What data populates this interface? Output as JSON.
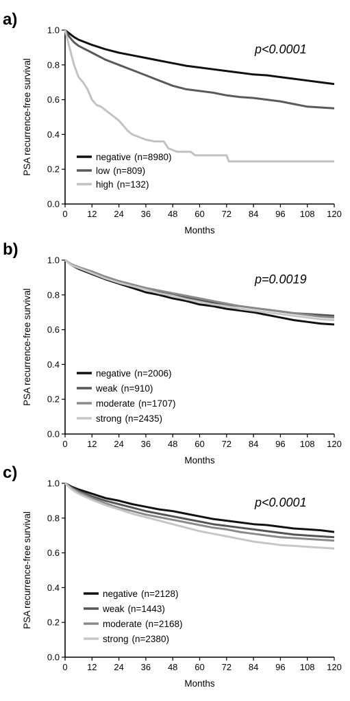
{
  "chart_data": [
    {
      "type": "line",
      "panel_label": "a)",
      "ylabel": "PSA recurrence-free survival",
      "xlabel": "Months",
      "annotation": "p<0.0001",
      "xlim": [
        0,
        120
      ],
      "ylim": [
        0,
        1.0
      ],
      "xticks": [
        "0",
        "12",
        "24",
        "36",
        "48",
        "60",
        "72",
        "84",
        "96",
        "108",
        "120"
      ],
      "yticks": [
        "0.0",
        "0.2",
        "0.4",
        "0.6",
        "0.8",
        "1.0"
      ],
      "series": [
        {
          "name": "negative",
          "n": "(n=8980)",
          "color": "#111111",
          "points": [
            [
              0,
              1.0
            ],
            [
              2,
              0.98
            ],
            [
              4,
              0.96
            ],
            [
              6,
              0.945
            ],
            [
              12,
              0.915
            ],
            [
              18,
              0.89
            ],
            [
              24,
              0.87
            ],
            [
              30,
              0.855
            ],
            [
              36,
              0.84
            ],
            [
              42,
              0.825
            ],
            [
              48,
              0.81
            ],
            [
              54,
              0.795
            ],
            [
              60,
              0.785
            ],
            [
              66,
              0.775
            ],
            [
              72,
              0.765
            ],
            [
              78,
              0.755
            ],
            [
              84,
              0.745
            ],
            [
              90,
              0.74
            ],
            [
              96,
              0.73
            ],
            [
              102,
              0.72
            ],
            [
              108,
              0.71
            ],
            [
              114,
              0.7
            ],
            [
              120,
              0.69
            ]
          ]
        },
        {
          "name": "low",
          "n": "(n=809)",
          "color": "#5a5a5a",
          "points": [
            [
              0,
              1.0
            ],
            [
              2,
              0.96
            ],
            [
              4,
              0.93
            ],
            [
              6,
              0.91
            ],
            [
              12,
              0.87
            ],
            [
              18,
              0.83
            ],
            [
              24,
              0.8
            ],
            [
              30,
              0.77
            ],
            [
              36,
              0.74
            ],
            [
              42,
              0.71
            ],
            [
              48,
              0.68
            ],
            [
              54,
              0.66
            ],
            [
              60,
              0.65
            ],
            [
              66,
              0.64
            ],
            [
              72,
              0.625
            ],
            [
              78,
              0.615
            ],
            [
              84,
              0.61
            ],
            [
              90,
              0.6
            ],
            [
              96,
              0.59
            ],
            [
              102,
              0.575
            ],
            [
              108,
              0.56
            ],
            [
              114,
              0.555
            ],
            [
              120,
              0.55
            ]
          ]
        },
        {
          "name": "high",
          "n": "(n=132)",
          "color": "#c2c2c2",
          "points": [
            [
              0,
              1.0
            ],
            [
              2,
              0.9
            ],
            [
              4,
              0.8
            ],
            [
              6,
              0.73
            ],
            [
              8,
              0.7
            ],
            [
              10,
              0.66
            ],
            [
              12,
              0.6
            ],
            [
              14,
              0.57
            ],
            [
              16,
              0.56
            ],
            [
              18,
              0.54
            ],
            [
              20,
              0.52
            ],
            [
              22,
              0.5
            ],
            [
              24,
              0.48
            ],
            [
              26,
              0.45
            ],
            [
              28,
              0.42
            ],
            [
              30,
              0.4
            ],
            [
              34,
              0.38
            ],
            [
              36,
              0.37
            ],
            [
              40,
              0.36
            ],
            [
              44,
              0.36
            ],
            [
              46,
              0.32
            ],
            [
              50,
              0.3
            ],
            [
              56,
              0.3
            ],
            [
              58,
              0.28
            ],
            [
              72,
              0.28
            ],
            [
              73,
              0.245
            ],
            [
              120,
              0.245
            ]
          ]
        }
      ]
    },
    {
      "type": "line",
      "panel_label": "b)",
      "ylabel": "PSA recurrence-free survival",
      "xlabel": "Months",
      "annotation": "p=0.0019",
      "xlim": [
        0,
        120
      ],
      "ylim": [
        0,
        1.0
      ],
      "xticks": [
        "0",
        "12",
        "24",
        "36",
        "48",
        "60",
        "72",
        "84",
        "96",
        "108",
        "120"
      ],
      "yticks": [
        "0.0",
        "0.2",
        "0.4",
        "0.6",
        "0.8",
        "1.0"
      ],
      "series": [
        {
          "name": "negative",
          "n": "(n=2006)",
          "color": "#111111",
          "points": [
            [
              0,
              1.0
            ],
            [
              3,
              0.97
            ],
            [
              6,
              0.95
            ],
            [
              12,
              0.92
            ],
            [
              18,
              0.89
            ],
            [
              24,
              0.865
            ],
            [
              30,
              0.84
            ],
            [
              36,
              0.815
            ],
            [
              42,
              0.8
            ],
            [
              48,
              0.78
            ],
            [
              54,
              0.765
            ],
            [
              60,
              0.745
            ],
            [
              66,
              0.735
            ],
            [
              72,
              0.72
            ],
            [
              78,
              0.71
            ],
            [
              84,
              0.7
            ],
            [
              90,
              0.685
            ],
            [
              96,
              0.67
            ],
            [
              102,
              0.655
            ],
            [
              108,
              0.645
            ],
            [
              114,
              0.635
            ],
            [
              120,
              0.63
            ]
          ]
        },
        {
          "name": "weak",
          "n": "(n=910)",
          "color": "#555555",
          "points": [
            [
              0,
              1.0
            ],
            [
              3,
              0.975
            ],
            [
              6,
              0.96
            ],
            [
              12,
              0.93
            ],
            [
              18,
              0.9
            ],
            [
              24,
              0.875
            ],
            [
              30,
              0.855
            ],
            [
              36,
              0.835
            ],
            [
              42,
              0.815
            ],
            [
              48,
              0.8
            ],
            [
              54,
              0.785
            ],
            [
              60,
              0.77
            ],
            [
              66,
              0.755
            ],
            [
              72,
              0.745
            ],
            [
              78,
              0.735
            ],
            [
              84,
              0.725
            ],
            [
              90,
              0.715
            ],
            [
              96,
              0.705
            ],
            [
              102,
              0.695
            ],
            [
              108,
              0.69
            ],
            [
              114,
              0.685
            ],
            [
              120,
              0.68
            ]
          ]
        },
        {
          "name": "moderate",
          "n": "(n=1707)",
          "color": "#8a8a8a",
          "points": [
            [
              0,
              1.0
            ],
            [
              3,
              0.975
            ],
            [
              6,
              0.96
            ],
            [
              12,
              0.935
            ],
            [
              18,
              0.905
            ],
            [
              24,
              0.88
            ],
            [
              30,
              0.86
            ],
            [
              36,
              0.84
            ],
            [
              42,
              0.825
            ],
            [
              48,
              0.81
            ],
            [
              54,
              0.795
            ],
            [
              60,
              0.78
            ],
            [
              66,
              0.765
            ],
            [
              72,
              0.75
            ],
            [
              78,
              0.735
            ],
            [
              84,
              0.725
            ],
            [
              90,
              0.715
            ],
            [
              96,
              0.705
            ],
            [
              102,
              0.695
            ],
            [
              108,
              0.685
            ],
            [
              114,
              0.675
            ],
            [
              120,
              0.67
            ]
          ]
        },
        {
          "name": "strong",
          "n": "(n=2435)",
          "color": "#c6c6c6",
          "points": [
            [
              0,
              1.0
            ],
            [
              3,
              0.97
            ],
            [
              6,
              0.955
            ],
            [
              12,
              0.925
            ],
            [
              18,
              0.895
            ],
            [
              24,
              0.87
            ],
            [
              30,
              0.85
            ],
            [
              36,
              0.83
            ],
            [
              42,
              0.81
            ],
            [
              48,
              0.795
            ],
            [
              54,
              0.775
            ],
            [
              60,
              0.76
            ],
            [
              66,
              0.745
            ],
            [
              72,
              0.735
            ],
            [
              78,
              0.72
            ],
            [
              84,
              0.71
            ],
            [
              90,
              0.7
            ],
            [
              96,
              0.69
            ],
            [
              102,
              0.68
            ],
            [
              108,
              0.67
            ],
            [
              114,
              0.66
            ],
            [
              120,
              0.655
            ]
          ]
        }
      ]
    },
    {
      "type": "line",
      "panel_label": "c)",
      "ylabel": "PSA recurrence-free survival",
      "xlabel": "Months",
      "annotation": "p<0.0001",
      "xlim": [
        0,
        120
      ],
      "ylim": [
        0,
        1.0
      ],
      "xticks": [
        "0",
        "12",
        "24",
        "36",
        "48",
        "60",
        "72",
        "84",
        "96",
        "108",
        "120"
      ],
      "yticks": [
        "0.0",
        "0.2",
        "0.4",
        "0.6",
        "0.8",
        "1.0"
      ],
      "series": [
        {
          "name": "negative",
          "n": "(n=2128)",
          "color": "#111111",
          "points": [
            [
              0,
              1.0
            ],
            [
              3,
              0.98
            ],
            [
              6,
              0.965
            ],
            [
              12,
              0.94
            ],
            [
              18,
              0.915
            ],
            [
              24,
              0.9
            ],
            [
              30,
              0.88
            ],
            [
              36,
              0.865
            ],
            [
              42,
              0.85
            ],
            [
              48,
              0.84
            ],
            [
              54,
              0.825
            ],
            [
              60,
              0.81
            ],
            [
              66,
              0.795
            ],
            [
              72,
              0.785
            ],
            [
              78,
              0.775
            ],
            [
              84,
              0.765
            ],
            [
              90,
              0.76
            ],
            [
              96,
              0.75
            ],
            [
              102,
              0.74
            ],
            [
              108,
              0.735
            ],
            [
              114,
              0.73
            ],
            [
              120,
              0.72
            ]
          ]
        },
        {
          "name": "weak",
          "n": "(n=1443)",
          "color": "#555555",
          "points": [
            [
              0,
              1.0
            ],
            [
              3,
              0.975
            ],
            [
              6,
              0.955
            ],
            [
              12,
              0.925
            ],
            [
              18,
              0.9
            ],
            [
              24,
              0.88
            ],
            [
              30,
              0.86
            ],
            [
              36,
              0.84
            ],
            [
              42,
              0.825
            ],
            [
              48,
              0.81
            ],
            [
              54,
              0.795
            ],
            [
              60,
              0.78
            ],
            [
              66,
              0.765
            ],
            [
              72,
              0.755
            ],
            [
              78,
              0.745
            ],
            [
              84,
              0.735
            ],
            [
              90,
              0.725
            ],
            [
              96,
              0.715
            ],
            [
              102,
              0.705
            ],
            [
              108,
              0.7
            ],
            [
              114,
              0.695
            ],
            [
              120,
              0.69
            ]
          ]
        },
        {
          "name": "moderate",
          "n": "(n=2168)",
          "color": "#8a8a8a",
          "points": [
            [
              0,
              1.0
            ],
            [
              3,
              0.97
            ],
            [
              6,
              0.95
            ],
            [
              12,
              0.915
            ],
            [
              18,
              0.885
            ],
            [
              24,
              0.86
            ],
            [
              30,
              0.84
            ],
            [
              36,
              0.82
            ],
            [
              42,
              0.805
            ],
            [
              48,
              0.79
            ],
            [
              54,
              0.775
            ],
            [
              60,
              0.76
            ],
            [
              66,
              0.745
            ],
            [
              72,
              0.735
            ],
            [
              78,
              0.72
            ],
            [
              84,
              0.71
            ],
            [
              90,
              0.7
            ],
            [
              96,
              0.69
            ],
            [
              102,
              0.685
            ],
            [
              108,
              0.68
            ],
            [
              114,
              0.675
            ],
            [
              120,
              0.67
            ]
          ]
        },
        {
          "name": "strong",
          "n": "(n=2380)",
          "color": "#c6c6c6",
          "points": [
            [
              0,
              1.0
            ],
            [
              3,
              0.965
            ],
            [
              6,
              0.94
            ],
            [
              12,
              0.905
            ],
            [
              18,
              0.875
            ],
            [
              24,
              0.85
            ],
            [
              30,
              0.825
            ],
            [
              36,
              0.805
            ],
            [
              42,
              0.785
            ],
            [
              48,
              0.765
            ],
            [
              54,
              0.745
            ],
            [
              60,
              0.725
            ],
            [
              66,
              0.71
            ],
            [
              72,
              0.695
            ],
            [
              78,
              0.68
            ],
            [
              84,
              0.665
            ],
            [
              90,
              0.655
            ],
            [
              96,
              0.645
            ],
            [
              102,
              0.64
            ],
            [
              108,
              0.635
            ],
            [
              114,
              0.63
            ],
            [
              120,
              0.625
            ]
          ]
        }
      ]
    }
  ]
}
